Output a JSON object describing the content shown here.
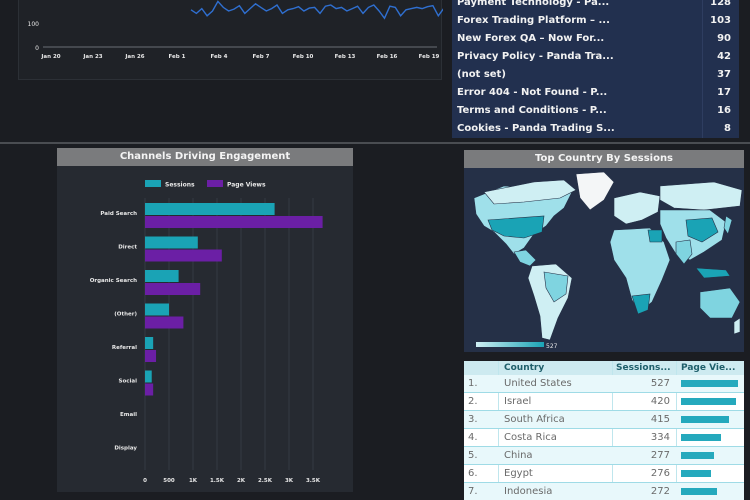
{
  "line_chart": {
    "y_ticks": [
      "100",
      "0"
    ],
    "x_ticks": [
      "Jan 20",
      "Jan 23",
      "Jan 26",
      "Feb 1",
      "Feb 4",
      "Feb 7",
      "Feb 10",
      "Feb 13",
      "Feb 16",
      "Feb 19"
    ],
    "points": [
      155,
      140,
      160,
      130,
      150,
      190,
      165,
      150,
      158,
      172,
      140,
      160,
      180,
      165,
      150,
      160,
      175,
      140,
      155,
      160,
      168,
      150,
      162,
      165,
      140,
      170,
      175,
      160,
      165,
      150,
      160,
      170,
      140,
      165,
      175,
      150,
      120,
      170,
      165,
      130,
      155,
      160,
      165,
      160,
      168,
      172,
      130,
      160,
      50
    ],
    "ylim": [
      0,
      200
    ],
    "color": "#2f6fd0"
  },
  "page_table": {
    "rows": [
      {
        "name": "Payment Technology - Pa...",
        "value": "128"
      },
      {
        "name": "Forex Trading Platform – ...",
        "value": "103"
      },
      {
        "name": "New Forex QA – Now For...",
        "value": "90"
      },
      {
        "name": "Privacy Policy - Panda Tra...",
        "value": "42"
      },
      {
        "name": "(not set)",
        "value": "37"
      },
      {
        "name": "Error 404 - Not Found - P...",
        "value": "17"
      },
      {
        "name": "Terms and Conditions - P...",
        "value": "16"
      },
      {
        "name": "Cookies - Panda Trading S...",
        "value": "8"
      }
    ]
  },
  "channels": {
    "title": "Channels Driving Engagement",
    "legend": [
      "Sessions",
      "Page Views"
    ]
  },
  "chart_data": {
    "type": "bar",
    "orientation": "horizontal",
    "title": "Channels Driving Engagement",
    "categories": [
      "Paid Search",
      "Direct",
      "Organic Search",
      "(Other)",
      "Referral",
      "Social",
      "Email",
      "Display"
    ],
    "series": [
      {
        "name": "Sessions",
        "values": [
          2700,
          1100,
          700,
          500,
          170,
          140,
          0,
          0
        ],
        "color": "#1aa3b5"
      },
      {
        "name": "Page Views",
        "values": [
          3700,
          1600,
          1150,
          800,
          230,
          170,
          0,
          0
        ],
        "color": "#6b1fa5"
      }
    ],
    "x_ticks": [
      "0",
      "500",
      "1K",
      "1.5K",
      "2K",
      "2.5K",
      "3K",
      "3.5K"
    ],
    "xlim": [
      0,
      4000
    ],
    "legend": "top"
  },
  "map": {
    "title": "Top Country By Sessions",
    "scale_max": "527",
    "colors": {
      "ocean": "#253047",
      "low": "#cfeff3",
      "mid": "#7fd4e0",
      "high": "#1aa3b5",
      "nodata": "#f4f6f7"
    }
  },
  "country_table": {
    "headers": {
      "country": "Country",
      "sessions": "Sessions...",
      "pageviews": "Page Vie..."
    },
    "rows": [
      {
        "idx": "1.",
        "country": "United States",
        "sessions": "527",
        "bar": 0.95
      },
      {
        "idx": "2.",
        "country": "Israel",
        "sessions": "420",
        "bar": 0.92
      },
      {
        "idx": "3.",
        "country": "South Africa",
        "sessions": "415",
        "bar": 0.8
      },
      {
        "idx": "4.",
        "country": "Costa Rica",
        "sessions": "334",
        "bar": 0.67
      },
      {
        "idx": "5.",
        "country": "China",
        "sessions": "277",
        "bar": 0.55
      },
      {
        "idx": "6.",
        "country": "Egypt",
        "sessions": "276",
        "bar": 0.5
      },
      {
        "idx": "7.",
        "country": "Indonesia",
        "sessions": "272",
        "bar": 0.6
      }
    ]
  }
}
